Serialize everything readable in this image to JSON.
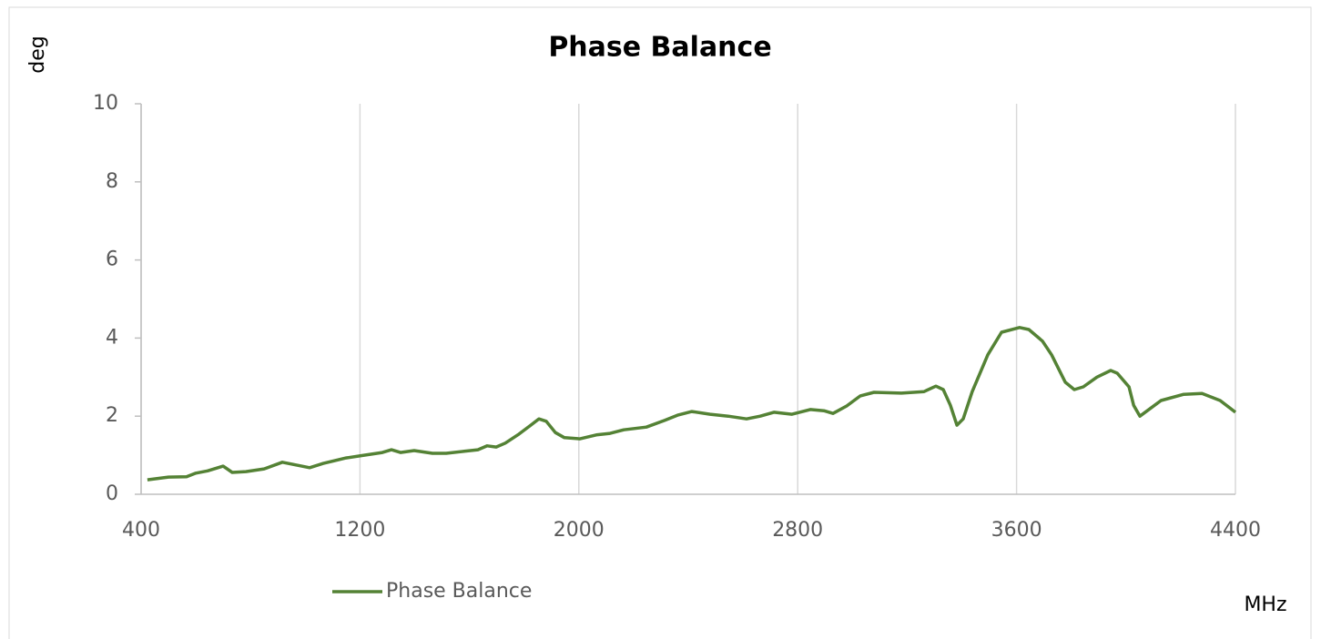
{
  "chart_data": {
    "type": "line",
    "title": "Phase Balance",
    "y_label": "deg",
    "x_label": "MHz",
    "x": [
      423,
      500,
      566,
      600,
      643,
      700,
      733,
      783,
      850,
      916,
      966,
      1016,
      1066,
      1149,
      1215,
      1282,
      1315,
      1348,
      1398,
      1465,
      1515,
      1581,
      1631,
      1665,
      1698,
      1731,
      1781,
      1821,
      1854,
      1881,
      1914,
      1947,
      2004,
      2064,
      2114,
      2164,
      2247,
      2313,
      2363,
      2413,
      2480,
      2546,
      2613,
      2663,
      2713,
      2779,
      2846,
      2896,
      2929,
      2979,
      3029,
      3079,
      3179,
      3262,
      3305,
      3332,
      3358,
      3382,
      3405,
      3438,
      3495,
      3545,
      3611,
      3645,
      3695,
      3728,
      3778,
      3811,
      3844,
      3894,
      3944,
      3968,
      4011,
      4028,
      4051,
      4128,
      4211,
      4278,
      4344,
      4400
    ],
    "series": [
      {
        "name": "Phase Balance",
        "color": "#548235",
        "values": [
          0.37,
          0.44,
          0.45,
          0.54,
          0.6,
          0.72,
          0.56,
          0.58,
          0.65,
          0.82,
          0.75,
          0.68,
          0.79,
          0.93,
          1.0,
          1.07,
          1.14,
          1.07,
          1.12,
          1.05,
          1.05,
          1.1,
          1.14,
          1.24,
          1.21,
          1.31,
          1.54,
          1.75,
          1.93,
          1.87,
          1.58,
          1.45,
          1.42,
          1.52,
          1.56,
          1.65,
          1.72,
          1.89,
          2.03,
          2.12,
          2.05,
          2.0,
          1.93,
          2.0,
          2.1,
          2.05,
          2.17,
          2.14,
          2.07,
          2.26,
          2.52,
          2.61,
          2.59,
          2.63,
          2.77,
          2.68,
          2.28,
          1.77,
          1.93,
          2.63,
          3.57,
          4.15,
          4.27,
          4.22,
          3.92,
          3.57,
          2.87,
          2.68,
          2.75,
          3.0,
          3.17,
          3.1,
          2.75,
          2.28,
          2.0,
          2.4,
          2.56,
          2.58,
          2.4,
          2.1
        ]
      }
    ],
    "xlim": [
      400,
      4400
    ],
    "xticks": [
      400,
      1200,
      2000,
      2800,
      3600,
      4400
    ],
    "ylim": [
      0,
      10
    ],
    "yticks": [
      0,
      2,
      4,
      6,
      8,
      10
    ],
    "xgrid": true,
    "ygrid": false,
    "legend": "bottom"
  }
}
